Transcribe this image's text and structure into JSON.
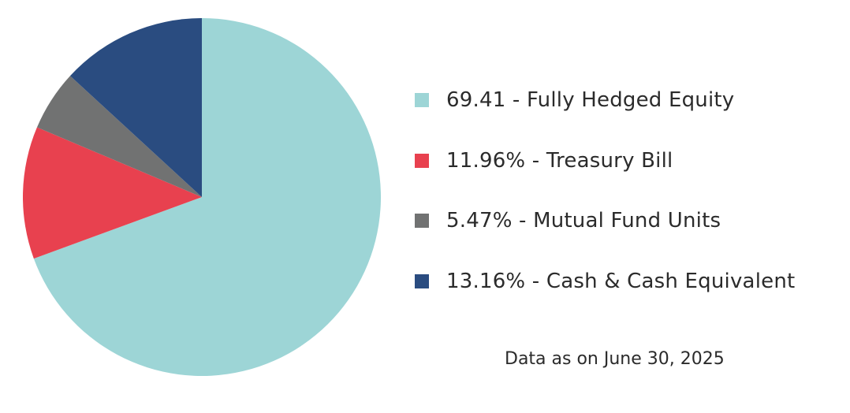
{
  "chart_data": {
    "type": "pie",
    "slices": [
      {
        "label": "69.41 - Fully Hedged Equity",
        "name": "Fully Hedged Equity",
        "value": 69.41,
        "color": "#9dd5d6"
      },
      {
        "label": "11.96% - Treasury Bill",
        "name": "Treasury Bill",
        "value": 11.96,
        "color": "#e8414f"
      },
      {
        "label": "5.47% - Mutual Fund Units",
        "name": "Mutual Fund Units",
        "value": 5.47,
        "color": "#717272"
      },
      {
        "label": "13.16% - Cash & Cash Equivalent",
        "name": "Cash & Cash Equivalent",
        "value": 13.16,
        "color": "#2a4c80"
      }
    ],
    "start_angle": "12 o'clock",
    "direction": "clockwise",
    "legend_position": "right",
    "note": "Data as on June 30, 2025"
  }
}
